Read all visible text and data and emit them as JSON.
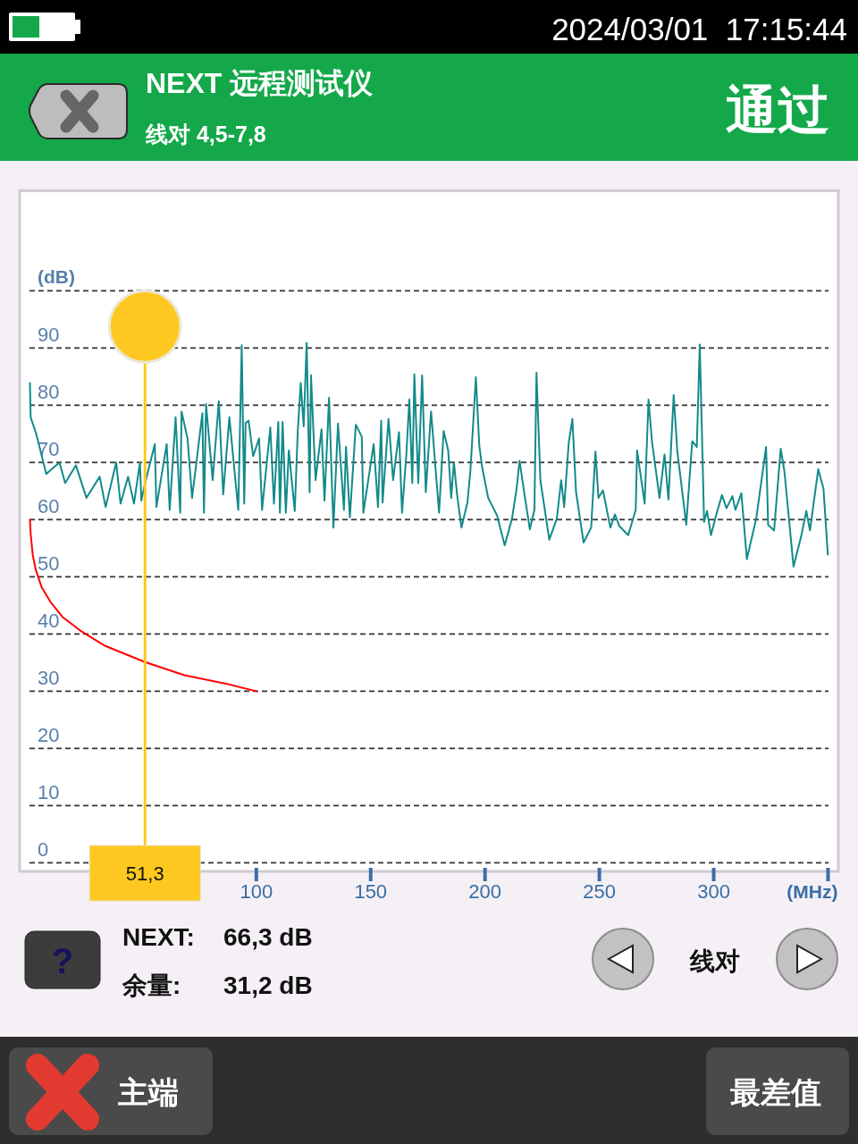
{
  "chart_data": {
    "type": "line",
    "title": "NEXT 远程测试仪",
    "subtitle": "线对 4,5-7,8",
    "xlabel": "(MHz)",
    "ylabel": "(dB)",
    "xlim": [
      -3.5,
      354.5
    ],
    "ylim": [
      -1.5,
      117.5
    ],
    "xticks": [
      100,
      150,
      200,
      250,
      300,
      {
        "value": 350,
        "label": null
      }
    ],
    "yticks": [
      0,
      10,
      20,
      30,
      40,
      50,
      60,
      70,
      80,
      90,
      {
        "value": 100,
        "label": null
      }
    ],
    "grid": "y",
    "series": [
      {
        "color": "#138a8a",
        "x": [
          1.0,
          1.3,
          3.5,
          5.5,
          8.1,
          13.9,
          16.4,
          21.1,
          25.7,
          31.5,
          34.1,
          38.7,
          40.6,
          43.9,
          46.5,
          49.1,
          49.7,
          51.3,
          55.6,
          56.3,
          60.8,
          62.1,
          64.7,
          66.7,
          67.3,
          69.9,
          71.9,
          76.4,
          77.1,
          78.0,
          80.9,
          83.6,
          85.5,
          88.2,
          92.1,
          93.6,
          94.7,
          95.3,
          96.6,
          98.6,
          101.2,
          102.5,
          106.1,
          107.7,
          109.6,
          110.3,
          111.5,
          112.9,
          114.2,
          116.8,
          118.1,
          119.4,
          120.7,
          122.0,
          123.3,
          123.9,
          125.9,
          128.5,
          129.8,
          131.8,
          133.7,
          135.7,
          138.3,
          139.2,
          140.9,
          143.5,
          146.1,
          146.8,
          151.3,
          153.2,
          154.6,
          155.2,
          157.8,
          159.8,
          162.4,
          163.7,
          165.6,
          166.9,
          168.2,
          169.1,
          170.8,
          172.5,
          174.1,
          176.4,
          179.9,
          181.9,
          183.9,
          185.2,
          186.4,
          187.8,
          189.7,
          192.3,
          193.6,
          196.0,
          197.5,
          198.8,
          201.4,
          205.3,
          208.6,
          211.8,
          213.8,
          215.1,
          217.1,
          219.6,
          221.6,
          222.5,
          224.2,
          228.1,
          231.4,
          233.3,
          234.6,
          236.6,
          238.2,
          239.8,
          243.1,
          246.4,
          248.3,
          249.6,
          251.6,
          254.8,
          256.8,
          258.7,
          262.6,
          265.9,
          266.5,
          269.8,
          271.5,
          273.0,
          276.3,
          278.5,
          280.2,
          282.5,
          284.1,
          288.0,
          290.6,
          292.6,
          293.9,
          295.8,
          297.1,
          298.8,
          301.0,
          303.6,
          305.6,
          308.2,
          309.5,
          312.1,
          314.5,
          318.6,
          322.9,
          323.8,
          326.4,
          329.3,
          330.9,
          334.9,
          338.2,
          340.5,
          342.1,
          345.7,
          348.0,
          349.9
        ],
        "values": [
          83.9,
          77.9,
          75.3,
          72.2,
          68.0,
          70.0,
          66.4,
          69.5,
          63.8,
          67.5,
          62.2,
          70.0,
          62.8,
          67.5,
          62.8,
          70.0,
          63.3,
          66.3,
          73.2,
          62.2,
          73.2,
          61.7,
          77.9,
          61.2,
          78.9,
          74.2,
          63.8,
          78.6,
          61.2,
          80.2,
          66.9,
          80.7,
          64.4,
          77.9,
          61.7,
          90.5,
          62.8,
          76.9,
          77.3,
          71.1,
          74.2,
          61.7,
          76.1,
          62.8,
          77.1,
          61.2,
          77.1,
          61.2,
          72.1,
          61.5,
          75.3,
          83.9,
          76.3,
          90.9,
          64.8,
          85.2,
          66.9,
          75.8,
          63.3,
          81.3,
          58.6,
          76.8,
          61.7,
          72.7,
          60.4,
          76.6,
          74.5,
          61.2,
          73.2,
          62.2,
          77.3,
          63.0,
          77.6,
          66.9,
          75.3,
          61.2,
          71.4,
          81.0,
          66.4,
          85.4,
          66.4,
          85.2,
          64.8,
          78.9,
          61.2,
          75.5,
          72.1,
          63.8,
          70.0,
          64.3,
          58.6,
          63.0,
          68.5,
          84.9,
          72.9,
          69.0,
          63.8,
          60.7,
          55.5,
          60.2,
          65.4,
          70.3,
          64.8,
          58.3,
          61.7,
          85.7,
          66.9,
          56.5,
          60.2,
          66.9,
          62.2,
          73.4,
          77.6,
          64.8,
          56.0,
          58.6,
          71.9,
          63.8,
          65.1,
          58.6,
          60.9,
          58.9,
          57.3,
          61.7,
          72.1,
          62.8,
          81.0,
          73.7,
          63.8,
          71.4,
          63.5,
          81.8,
          71.9,
          59.1,
          73.7,
          72.7,
          90.6,
          59.6,
          61.5,
          57.3,
          60.7,
          64.3,
          62.0,
          64.1,
          61.7,
          64.6,
          53.1,
          60.2,
          72.7,
          59.1,
          58.1,
          72.4,
          68.5,
          51.8,
          57.0,
          61.5,
          58.1,
          68.8,
          65.4,
          53.9
        ]
      },
      {
        "color": "#ff0000",
        "x": [
          1.0,
          1.3,
          2.2,
          3.5,
          6.1,
          10.0,
          15.2,
          23.0,
          33.5,
          51.3,
          68.6,
          86.8,
          100
        ],
        "values": [
          60.0,
          57.6,
          53.9,
          51.3,
          48.2,
          45.6,
          43.0,
          40.6,
          38.0,
          35.1,
          32.8,
          31.3,
          30.0
        ]
      }
    ],
    "ref_lines": [
      {
        "axis": "x",
        "value": 51.3,
        "label": "51,3",
        "color": "#ffc820"
      }
    ],
    "annotations": [
      "2024/03/01  17:15:44",
      "通过",
      "NEXT:",
      "66,3 dB",
      "余量:",
      "31,2 dB",
      "?",
      "线对",
      "主端",
      "最差值"
    ]
  }
}
